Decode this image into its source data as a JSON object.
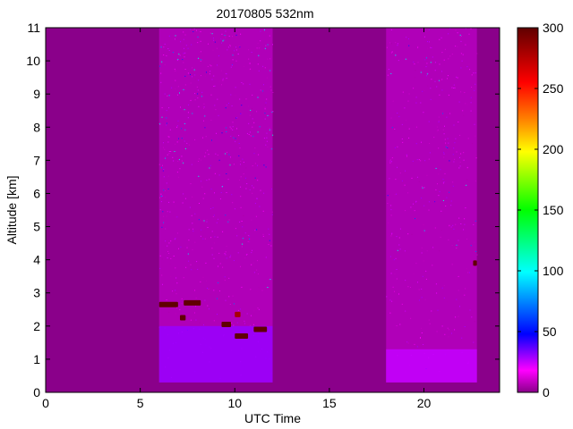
{
  "chart_data": {
    "type": "heatmap",
    "title": "20170805 532nm",
    "xlabel": "UTC Time",
    "ylabel": "Altitude [km]",
    "xlim": [
      0,
      24
    ],
    "ylim": [
      0,
      11
    ],
    "xticks": [
      0,
      5,
      10,
      15,
      20
    ],
    "yticks": [
      0,
      1,
      2,
      3,
      4,
      5,
      6,
      7,
      8,
      9,
      10,
      11
    ],
    "colorbar": {
      "range": [
        0,
        300
      ],
      "ticks": [
        0,
        50,
        100,
        150,
        200,
        250,
        300
      ],
      "colormap": "purple-magenta-blue-cyan-green-yellow-orange-red-darkred"
    },
    "colors": {
      "background": "#8a008a",
      "no_data": "#8a008a"
    },
    "measurement_periods": [
      {
        "start": 6.0,
        "end": 12.0,
        "min_altitude": 0.3
      },
      {
        "start": 18.0,
        "end": 22.8,
        "min_altitude": 0.3
      }
    ],
    "layers": [
      {
        "type": "boundary_layer",
        "start": 6.0,
        "end": 12.0,
        "top": 2.0,
        "value": 30
      },
      {
        "type": "boundary_layer",
        "start": 18.0,
        "end": 22.8,
        "top": 1.3,
        "value": 25
      },
      {
        "type": "cloud",
        "start": 6.0,
        "end": 7.0,
        "altitude": 2.65,
        "value": 300
      },
      {
        "type": "cloud",
        "start": 7.3,
        "end": 8.2,
        "altitude": 2.7,
        "value": 300
      },
      {
        "type": "cloud",
        "start": 7.1,
        "end": 7.4,
        "altitude": 2.25,
        "value": 300
      },
      {
        "type": "cloud",
        "start": 9.3,
        "end": 9.8,
        "altitude": 2.05,
        "value": 300
      },
      {
        "type": "cloud",
        "start": 10.0,
        "end": 10.3,
        "altitude": 2.35,
        "value": 280
      },
      {
        "type": "cloud",
        "start": 10.0,
        "end": 10.7,
        "altitude": 1.7,
        "value": 300
      },
      {
        "type": "cloud",
        "start": 11.0,
        "end": 11.7,
        "altitude": 1.9,
        "value": 300
      },
      {
        "type": "cloud",
        "start": 22.6,
        "end": 22.8,
        "altitude": 3.9,
        "value": 300
      }
    ]
  }
}
